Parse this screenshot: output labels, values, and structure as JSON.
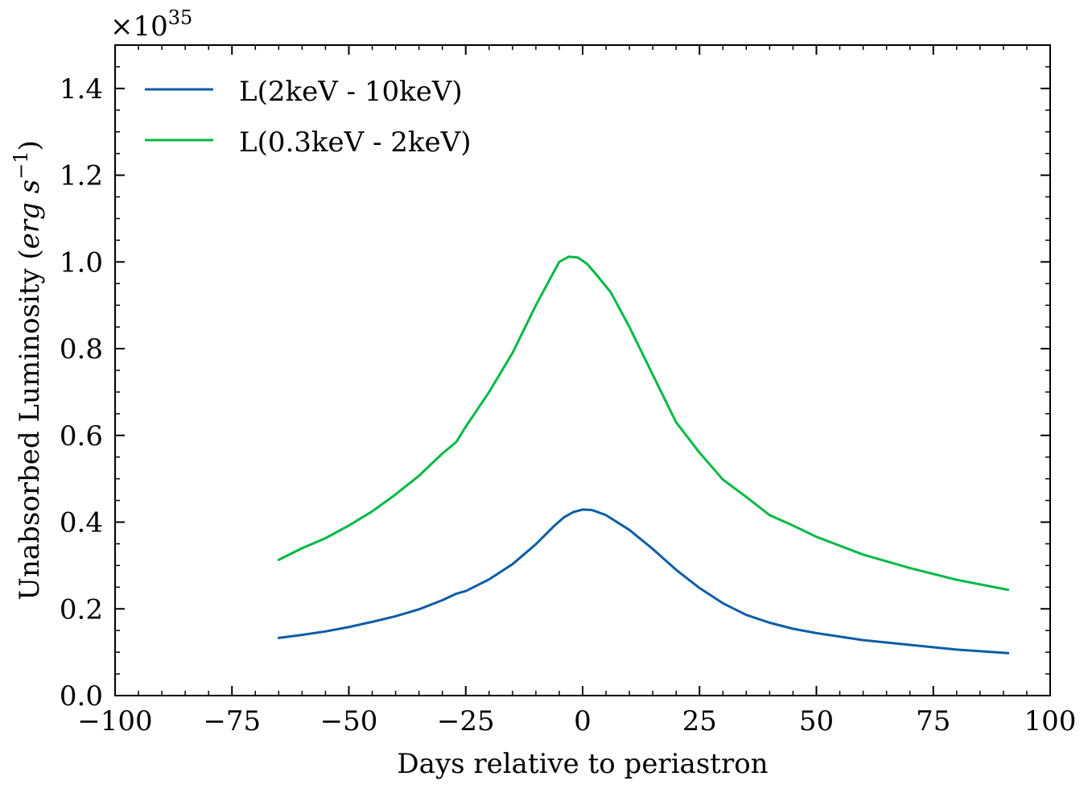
{
  "chart_data": {
    "type": "line",
    "title": "",
    "xlabel": "Days relative to periastron",
    "ylabel_main": "Unabsorbed Luminosity (",
    "ylabel_unit": "erg s",
    "ylabel_exp": "−1",
    "ylabel_close": ")",
    "y_offset_base": "×10",
    "y_offset_exp": "35",
    "xlim": [
      -100,
      100
    ],
    "ylim": [
      0.0,
      1.5
    ],
    "x_ticks": [
      -100,
      -75,
      -50,
      -25,
      0,
      25,
      50,
      75,
      100
    ],
    "x_tick_labels": [
      "−100",
      "−75",
      "−50",
      "−25",
      "0",
      "25",
      "50",
      "75",
      "100"
    ],
    "y_ticks": [
      0.0,
      0.2,
      0.4,
      0.6,
      0.8,
      1.0,
      1.2,
      1.4
    ],
    "y_tick_labels": [
      "0.0",
      "0.2",
      "0.4",
      "0.6",
      "0.8",
      "1.0",
      "1.2",
      "1.4"
    ],
    "grid": false,
    "legend_position": "top-left",
    "series": [
      {
        "name": "L(2keV - 10keV)",
        "color": "#0C5DA5",
        "x": [
          -65,
          -60,
          -55,
          -50,
          -45,
          -40,
          -35,
          -30,
          -27,
          -25,
          -20,
          -15,
          -10,
          -6,
          -4,
          -2,
          0,
          2,
          5,
          10,
          15,
          20,
          25,
          30,
          35,
          40,
          45,
          50,
          60,
          70,
          80,
          91
        ],
        "y": [
          0.133,
          0.14,
          0.148,
          0.158,
          0.17,
          0.183,
          0.199,
          0.22,
          0.235,
          0.241,
          0.268,
          0.303,
          0.349,
          0.392,
          0.411,
          0.423,
          0.429,
          0.428,
          0.416,
          0.382,
          0.338,
          0.29,
          0.248,
          0.213,
          0.186,
          0.168,
          0.154,
          0.144,
          0.128,
          0.117,
          0.106,
          0.098
        ]
      },
      {
        "name": "L(0.3keV - 2keV)",
        "color": "#00B945",
        "x": [
          -65,
          -60,
          -55,
          -50,
          -45,
          -40,
          -35,
          -30,
          -27,
          -25,
          -20,
          -15,
          -10,
          -6,
          -5,
          -3,
          -1,
          1,
          3,
          6,
          10,
          15,
          20,
          25,
          30,
          35,
          40,
          45,
          50,
          60,
          70,
          80,
          91
        ],
        "y": [
          0.313,
          0.34,
          0.363,
          0.392,
          0.425,
          0.464,
          0.507,
          0.558,
          0.585,
          0.62,
          0.7,
          0.79,
          0.9,
          0.98,
          1.0,
          1.012,
          1.01,
          0.995,
          0.97,
          0.93,
          0.85,
          0.74,
          0.63,
          0.56,
          0.498,
          0.458,
          0.416,
          0.392,
          0.366,
          0.325,
          0.294,
          0.267,
          0.244
        ]
      }
    ]
  }
}
